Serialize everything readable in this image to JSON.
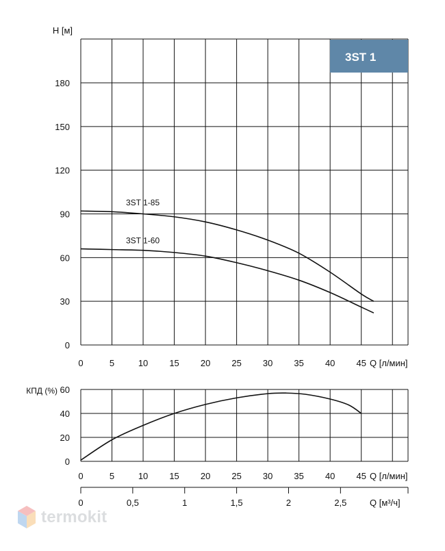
{
  "badge": {
    "text": "3ST 1",
    "color": "#5f87a8"
  },
  "watermark": {
    "text": "termokit",
    "colors": [
      "#e64a4a",
      "#4a8fd6",
      "#f2a23a"
    ]
  },
  "chart_data": [
    {
      "type": "line",
      "title": "",
      "ylabel": "H [м]",
      "xlabel": "Q [л/мин]",
      "xlim": [
        0,
        50
      ],
      "ylim": [
        0,
        200
      ],
      "x_ticks": [
        0,
        5,
        10,
        15,
        20,
        25,
        30,
        35,
        40,
        45
      ],
      "y_ticks": [
        0,
        30,
        60,
        90,
        120,
        150,
        180
      ],
      "grid": true,
      "series": [
        {
          "name": "3ST 1-85",
          "x": [
            0,
            5,
            10,
            15,
            20,
            25,
            30,
            35,
            40,
            45,
            47
          ],
          "values": [
            92,
            91.5,
            90,
            88,
            84.5,
            79,
            72,
            63,
            50,
            35,
            30
          ]
        },
        {
          "name": "3ST 1-60",
          "x": [
            0,
            5,
            10,
            15,
            20,
            25,
            30,
            35,
            40,
            45,
            47
          ],
          "values": [
            66,
            65.5,
            65,
            63.5,
            61,
            56.5,
            51,
            44.5,
            36,
            26,
            22
          ]
        }
      ]
    },
    {
      "type": "line",
      "title": "",
      "ylabel": "КПД (%)",
      "xlabel": "Q [л/мин]",
      "xlim": [
        0,
        50
      ],
      "ylim": [
        0,
        60
      ],
      "x_ticks": [
        0,
        5,
        10,
        15,
        20,
        25,
        30,
        35,
        40,
        45
      ],
      "y_ticks": [
        0,
        20,
        40,
        60
      ],
      "grid": true,
      "series": [
        {
          "name": "",
          "x": [
            0,
            5,
            10,
            15,
            20,
            25,
            30,
            33,
            36,
            40,
            43,
            45
          ],
          "values": [
            1,
            18,
            30,
            40,
            47.5,
            53,
            56.5,
            57,
            56,
            52,
            47,
            40
          ]
        }
      ],
      "secondary_x_axis": {
        "label": "Q [м³/ч]",
        "ticks": [
          0,
          0.5,
          1,
          1.5,
          2,
          2.5
        ],
        "tick_labels": [
          "0",
          "0,5",
          "1",
          "1,5",
          "2",
          "2,5"
        ],
        "lim": [
          0,
          3
        ]
      }
    }
  ]
}
